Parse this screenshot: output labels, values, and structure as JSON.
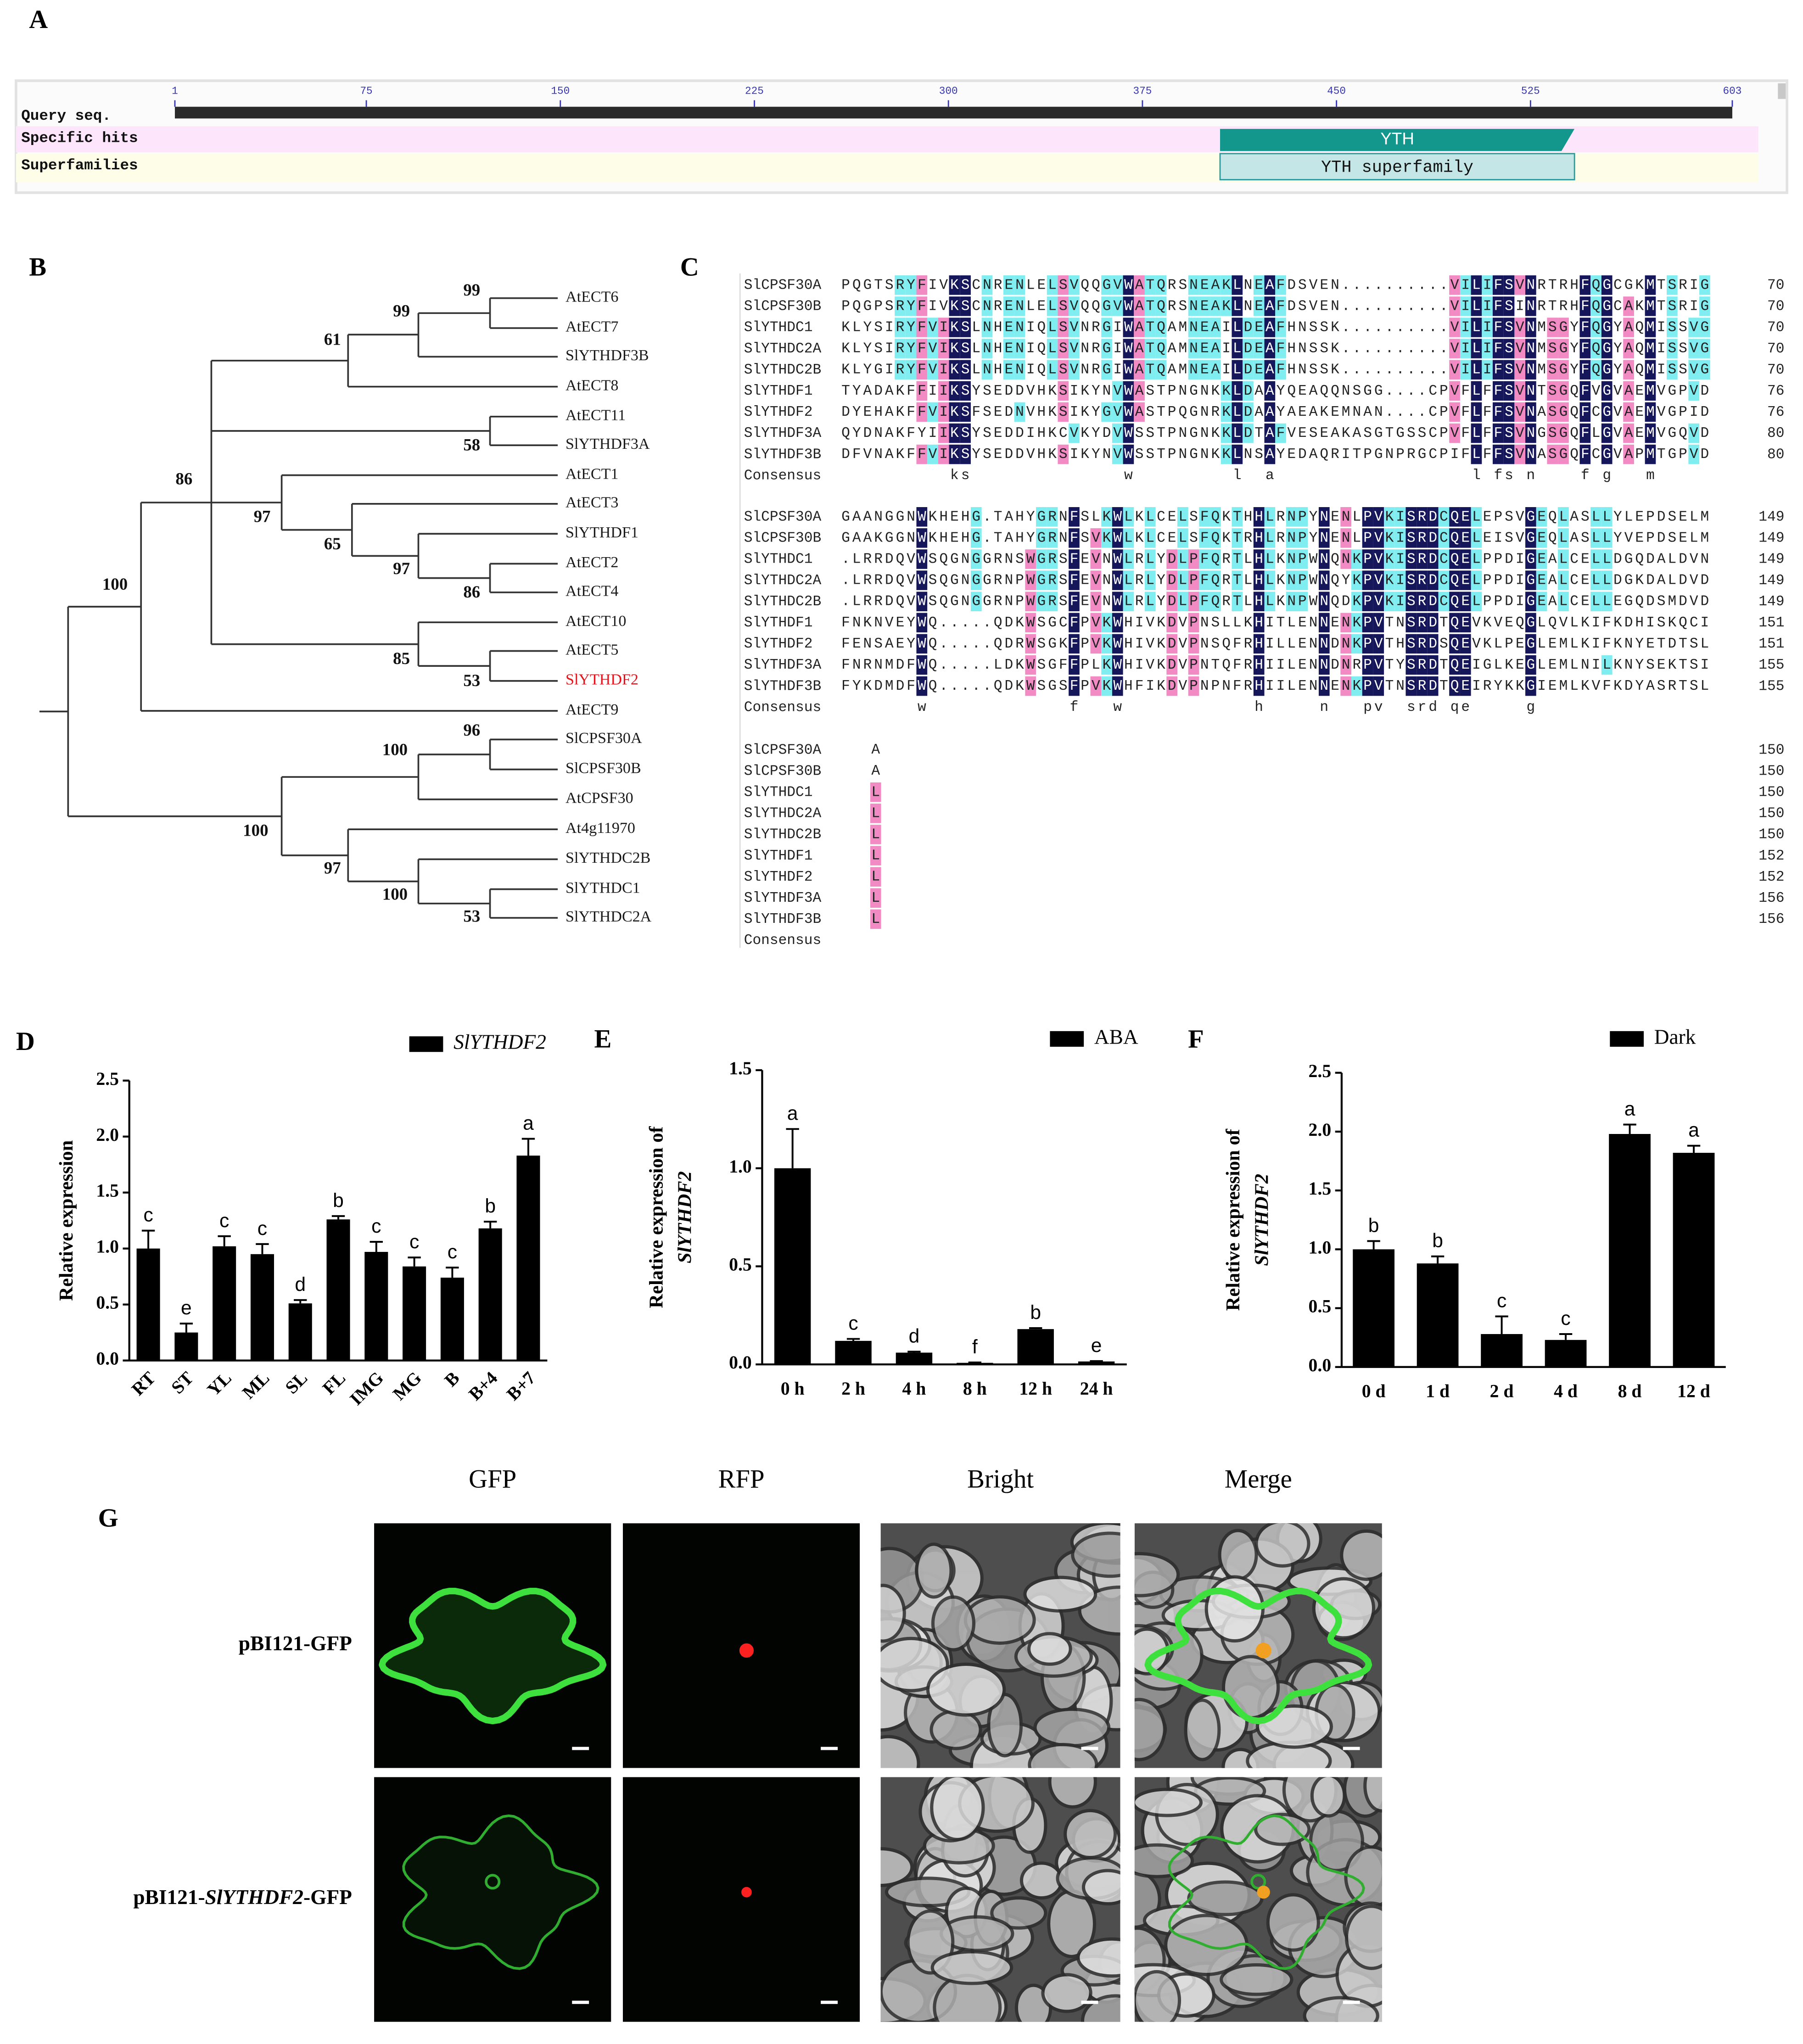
{
  "domain_map": {
    "label": "A",
    "tracks": [
      "Query seq.",
      "Specific hits",
      "Superfamilies"
    ],
    "ticks": [
      1,
      75,
      150,
      225,
      300,
      375,
      450,
      525,
      603
    ],
    "domains": [
      {
        "name": "YTH",
        "start": 405,
        "end": 542,
        "color": "#13968c"
      },
      {
        "name": "YTH superfamily",
        "start": 405,
        "end": 542,
        "color": "#c4e6e6"
      }
    ]
  },
  "tree": {
    "label": "B",
    "leaves": [
      {
        "name": "AtECT6"
      },
      {
        "name": "AtECT7"
      },
      {
        "name": "SlYTHDF3B"
      },
      {
        "name": "AtECT8"
      },
      {
        "name": "AtECT11"
      },
      {
        "name": "SlYTHDF3A"
      },
      {
        "name": "AtECT1"
      },
      {
        "name": "AtECT3"
      },
      {
        "name": "SlYTHDF1"
      },
      {
        "name": "AtECT2"
      },
      {
        "name": "AtECT4"
      },
      {
        "name": "AtECT10"
      },
      {
        "name": "AtECT5"
      },
      {
        "name": "SlYTHDF2",
        "color": "#e3141c"
      },
      {
        "name": "AtECT9"
      },
      {
        "name": "SlCPSF30A"
      },
      {
        "name": "SlCPSF30B"
      },
      {
        "name": "AtCPSF30"
      },
      {
        "name": "At4g11970"
      },
      {
        "name": "SlYTHDC2B"
      },
      {
        "name": "SlYTHDC1"
      },
      {
        "name": "SlYTHDC2A"
      }
    ],
    "bootstrap": [
      99,
      99,
      61,
      58,
      86,
      97,
      65,
      97,
      86,
      85,
      53,
      100,
      96,
      100,
      100,
      97,
      100,
      53
    ]
  },
  "alignment": {
    "label": "C",
    "colors": {
      "identical": "#16165a",
      "high": "#f28ac4",
      "medium": "#80eef0"
    },
    "blocks": [
      {
        "rows": [
          {
            "name": "SlCPSF30A",
            "seq": "PQGTSRYFIVKSCNRENLELSVQQGVWATQRSNEAKLNEAFDSVEN..........VILIFSVNRTRHFQGCGKMTSRIG",
            "end": 70
          },
          {
            "name": "SlCPSF30B",
            "seq": "PQGPSRYFIVKSCNRENLELSVQQGVWATQRSNEAKLNEAFDSVEN..........VILIFSINRTRHFQGCAKMTSRIG",
            "end": 70
          },
          {
            "name": "SlYTHDC1",
            "seq": "KLYSIRYFVIKSLNHENIQLSVNRGIWATQAMNEAILDEAFHNSSK..........VILIFSVNMSGYFQGYAQMISSVG",
            "end": 70
          },
          {
            "name": "SlYTHDC2A",
            "seq": "KLYSIRYFVIKSLNHENIQLSVNRGIWATQAMNEAILDEAFHNSSK..........VILIFSVNMSGYFQGYAQMISSVG",
            "end": 70
          },
          {
            "name": "SlYTHDC2B",
            "seq": "KLYGIRYFVIKSLNHENIQLSVNRGIWATQAMNEAILDEAFHNSSK..........VILIFSVNMSGYFQGYAQMISSVG",
            "end": 70
          },
          {
            "name": "SlYTHDF1",
            "seq": "TYADAKFFIIKSYSEDDVHKSIKYNVWASTPNGNKKLDAAYQEAQQNSGG....CPVFLFFSVNTSGQFVGVAEMVGPVD",
            "end": 76
          },
          {
            "name": "SlYTHDF2",
            "seq": "DYEHAKFFVIKSFSEDNVHKSIKYGVWASTPQGNRKLDAAYAEAKEMNAN....CPVFLFFSVNASGQFCGVAEMVGPID",
            "end": 76
          },
          {
            "name": "SlYTHDF3A",
            "seq": "QYDNAKFYIIKSYSEDDIHKCVKYDVWSSTPNGNKKLDTAFVESEAKASGTGSSCPVFLFFSVNGSGQFLGVAEMVGQVD",
            "end": 80
          },
          {
            "name": "SlYTHDF3B",
            "seq": "DFVNAKFFVIKSYSEDDVHKSIKYNVWSSTPNGNKKLNSAYEDAQRITPGNPRGCPIFLFFSVNASGQFCGVAPMTGPVD",
            "end": 80
          }
        ],
        "consensus": {
          "name": "Consensus",
          "seq": "          ks              w         l  a                  l fs n    f g   m"
        }
      },
      {
        "rows": [
          {
            "name": "SlCPSF30A",
            "seq": "GAANGGNWKHEHG.TAHYGRNFSLKWLKLCELSFQKTHHLRNPYNENLPVKISRDCQELEPSVGEQLASLLYLEPDSELM",
            "end": 149
          },
          {
            "name": "SlCPSF30B",
            "seq": "GAAKGGNWKHEHG.TAHYGRNFSVKWLKLCELSFQKTRHLRNPYNENLPVKISRDCQELEISVGEQLASLLYVEPDSELM",
            "end": 149
          },
          {
            "name": "SlYTHDC1",
            "seq": ".LRRDQVWSQGNGGRNSWGRSFEVNWLRLYDLPFQRTLHLKNPWNQNKPVKISRDCQELPPDIGEALCELLDGQDALDVN",
            "end": 149
          },
          {
            "name": "SlYTHDC2A",
            "seq": ".LRRDQVWSQGNGGRNPWGRSFEVNWLRLYDLPFQRTLHLKNPWNQYKPVKISRDCQELPPDIGEALCELLDGKDALDVD",
            "end": 149
          },
          {
            "name": "SlYTHDC2B",
            "seq": ".LRRDQVWSQGNGGRNPWGRSFEVNWLRLYDLPFQRTLHLKNPWNQDKPVKISRDCQELPPDIGEALCELLEGQDSMDVD",
            "end": 149
          },
          {
            "name": "SlYTHDF1",
            "seq": "FNKNVEYWQ.....QDKWSGCFPVKWHIVKDVPNSLLKHITLENNENKPVTNSRDTQEVKVEQGLQVLKIFKDHISKQCI",
            "end": 151
          },
          {
            "name": "SlYTHDF2",
            "seq": "FENSAEYWQ.....QDRWSGKFPVKWHIVKDVPNSQFRHILLENNDNKPVTHSRDSQEVKLPEGLEMLKIFKNYETDTSL",
            "end": 151
          },
          {
            "name": "SlYTHDF3A",
            "seq": "FNRNMDFWQ.....LDKWSGFFPLKWHIVKDVPNTQFRHIILENNDNRPVTYSRDTQEIGLKEGLEMLNILKNYSEKTSI",
            "end": 155
          },
          {
            "name": "SlYTHDF3B",
            "seq": "FYKDMDFWQ.....QDKWSGSFPVKWHFIKDVPNPNFRHIILENNENKPVTNSRDTQEIRYKKGIEMLKVFKDYASRTSL",
            "end": 155
          }
        ],
        "consensus": {
          "name": "Consensus",
          "seq": "       w             f   w            h     n   pv  srd qe     g"
        }
      },
      {
        "rows": [
          {
            "name": "SlCPSF30A",
            "seq": "A",
            "end": 150
          },
          {
            "name": "SlCPSF30B",
            "seq": "A",
            "end": 150
          },
          {
            "name": "SlYTHDC1",
            "seq": "L",
            "end": 150
          },
          {
            "name": "SlYTHDC2A",
            "seq": "L",
            "end": 150
          },
          {
            "name": "SlYTHDC2B",
            "seq": "L",
            "end": 150
          },
          {
            "name": "SlYTHDF1",
            "seq": "L",
            "end": 152
          },
          {
            "name": "SlYTHDF2",
            "seq": "L",
            "end": 152
          },
          {
            "name": "SlYTHDF3A",
            "seq": "L",
            "end": 156
          },
          {
            "name": "SlYTHDF3B",
            "seq": "L",
            "end": 156
          }
        ],
        "consensus": {
          "name": "Consensus"
        }
      }
    ]
  },
  "chart_data": [
    {
      "type": "bar",
      "label": "D",
      "ylabel": "Relative expression",
      "categories": [
        "RT",
        "ST",
        "YL",
        "ML",
        "SL",
        "FL",
        "IMG",
        "MG",
        "B",
        "B+4",
        "B+7"
      ],
      "series": [
        {
          "name": "SlYTHDF2",
          "color": "#000000",
          "values": [
            1.0,
            0.25,
            1.02,
            0.95,
            0.51,
            1.26,
            0.97,
            0.84,
            0.74,
            1.18,
            1.83
          ],
          "errors": [
            0.16,
            0.08,
            0.09,
            0.09,
            0.03,
            0.03,
            0.09,
            0.08,
            0.09,
            0.06,
            0.15
          ],
          "letters": [
            "c",
            "e",
            "c",
            "c",
            "d",
            "b",
            "c",
            "c",
            "c",
            "b",
            "a"
          ]
        }
      ],
      "ylim": [
        0,
        2.5
      ],
      "yticks": [
        {
          "value": 0,
          "label": "0.0"
        },
        0.5,
        {
          "value": 1,
          "label": "1.0"
        },
        1.5,
        {
          "value": 2,
          "label": "2.0"
        },
        2.5
      ]
    },
    {
      "type": "bar",
      "label": "E",
      "ylabel": [
        "Relative expression of",
        "SlYTHDF2"
      ],
      "categories": [
        "0 h",
        "2 h",
        "4 h",
        "8 h",
        "12 h",
        "24 h"
      ],
      "series": [
        {
          "name": "ABA",
          "color": "#000000",
          "values": [
            1.0,
            0.12,
            0.06,
            0.008,
            0.18,
            0.015
          ],
          "errors": [
            0.2,
            0.01,
            0.005,
            0.002,
            0.005,
            0.002
          ],
          "letters": [
            "a",
            "c",
            "d",
            "f",
            "b",
            "e"
          ]
        }
      ],
      "ylim": [
        0,
        1.5
      ],
      "yticks": [
        {
          "value": 0,
          "label": "0.0"
        },
        0.5,
        {
          "value": 1,
          "label": "1.0"
        },
        1.5
      ]
    },
    {
      "type": "bar",
      "label": "F",
      "ylabel": [
        "Relative expression of",
        "SlYTHDF2"
      ],
      "categories": [
        "0 d",
        "1 d",
        "2 d",
        "4 d",
        "8 d",
        "12 d"
      ],
      "series": [
        {
          "name": "Dark",
          "color": "#000000",
          "values": [
            1.0,
            0.88,
            0.28,
            0.23,
            1.98,
            1.82
          ],
          "errors": [
            0.07,
            0.06,
            0.15,
            0.05,
            0.08,
            0.06
          ],
          "letters": [
            "b",
            "b",
            "c",
            "c",
            "a",
            "a"
          ]
        }
      ],
      "ylim": [
        0,
        2.5
      ],
      "yticks": [
        {
          "value": 0,
          "label": "0.0"
        },
        0.5,
        {
          "value": 1,
          "label": "1.0"
        },
        1.5,
        {
          "value": 2,
          "label": "2.0"
        },
        2.5
      ]
    }
  ],
  "localization": {
    "label": "G",
    "columns": [
      "GFP",
      "RFP",
      "Bright",
      "Merge"
    ],
    "rows": [
      [
        "pBI121-GFP"
      ],
      [
        "pBI121-",
        "SlYTHDF2",
        "-GFP"
      ]
    ]
  }
}
